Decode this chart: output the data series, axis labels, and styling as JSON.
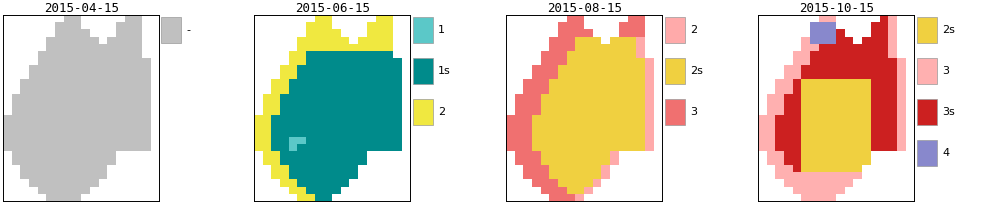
{
  "titles": [
    "2015-04-15",
    "2015-06-15",
    "2015-08-15",
    "2015-10-15"
  ],
  "colors": {
    "gray": "#c0c0c0",
    "cyan": "#5bc8c8",
    "teal": "#008b8b",
    "yellow": "#f0e840",
    "lightsalmon": "#ffaaaa",
    "gold": "#f0d040",
    "salmon": "#f07070",
    "pink": "#ffb0b0",
    "red": "#cc2020",
    "purple": "#8888cc"
  },
  "legend_configs": [
    [
      [
        "-",
        "#c0c0c0"
      ]
    ],
    [
      [
        "1",
        "#5bc8c8"
      ],
      [
        "1s",
        "#008b8b"
      ],
      [
        "2",
        "#f0e840"
      ]
    ],
    [
      [
        "2",
        "#ffaaaa"
      ],
      [
        "2s",
        "#f0d040"
      ],
      [
        "3",
        "#f07070"
      ]
    ],
    [
      [
        "2s",
        "#f0d040"
      ],
      [
        "3",
        "#ffb0b0"
      ],
      [
        "3s",
        "#cc2020"
      ],
      [
        "4",
        "#8888cc"
      ]
    ]
  ],
  "title_fontsize": 9,
  "legend_fontsize": 8,
  "background": "#ffffff"
}
